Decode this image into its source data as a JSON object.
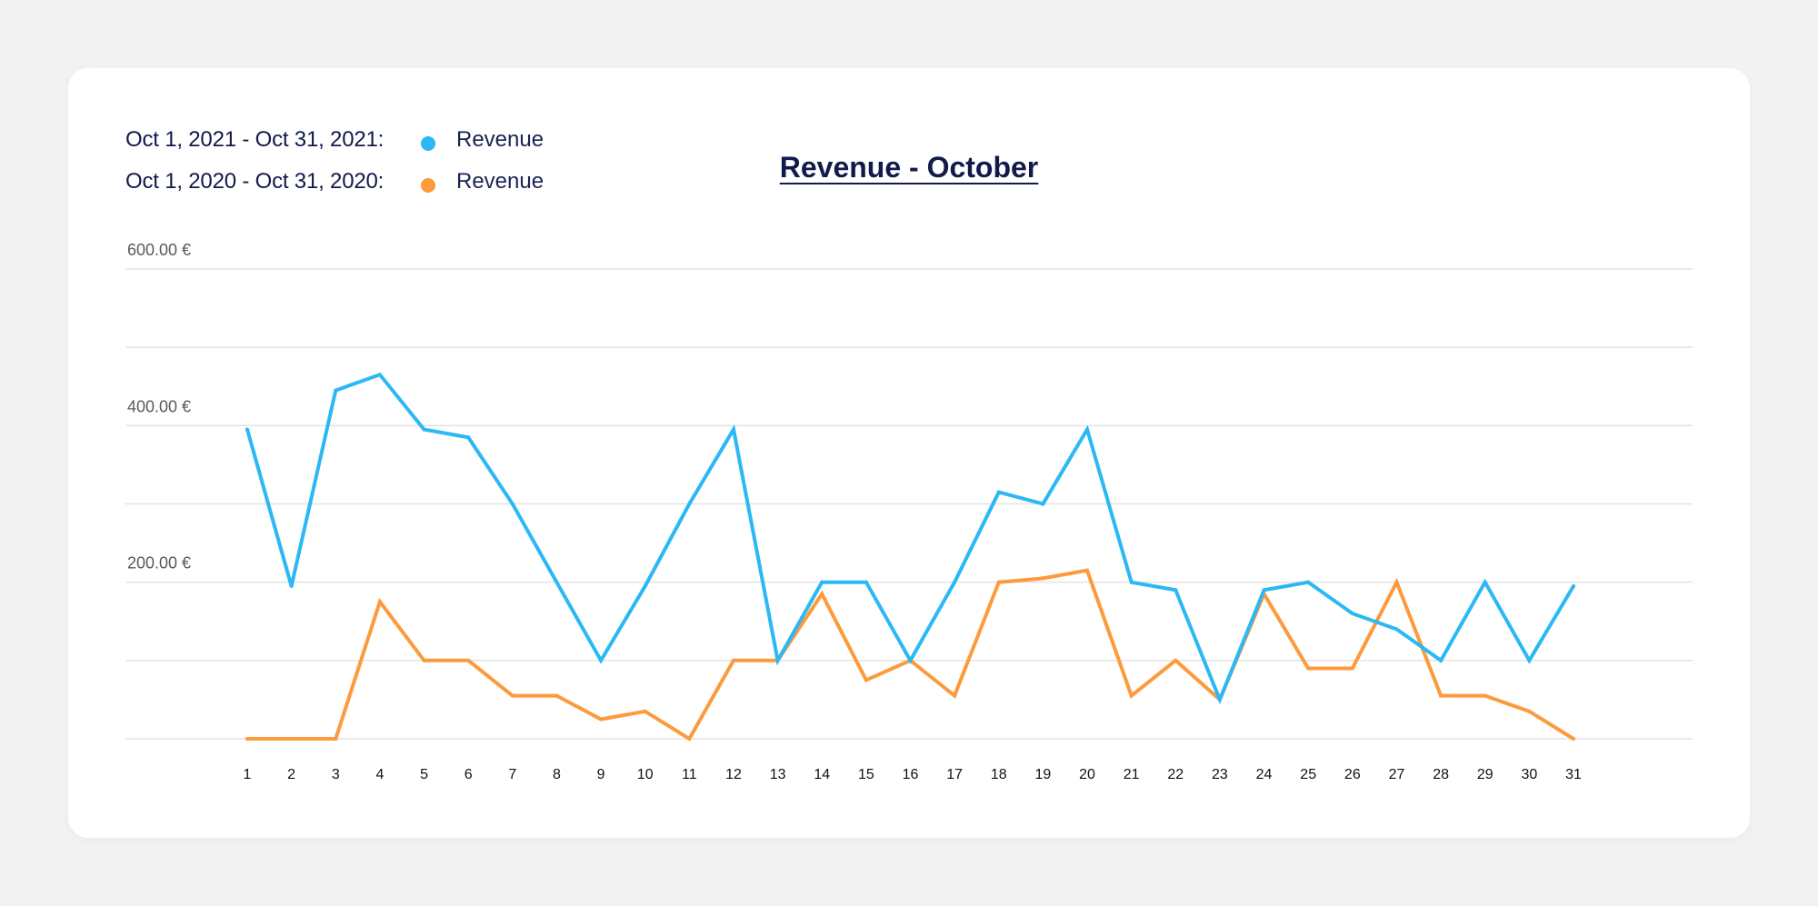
{
  "chart_data": {
    "type": "line",
    "title": "Revenue - October",
    "xlabel": "",
    "ylabel": "",
    "categories": [
      "1",
      "2",
      "3",
      "4",
      "5",
      "6",
      "7",
      "8",
      "9",
      "10",
      "11",
      "12",
      "13",
      "14",
      "15",
      "16",
      "17",
      "18",
      "19",
      "20",
      "21",
      "22",
      "23",
      "24",
      "25",
      "26",
      "27",
      "28",
      "29",
      "30",
      "31"
    ],
    "ylim": [
      0,
      600
    ],
    "y_ticks": [
      {
        "value": 600,
        "label": "600.00 €"
      },
      {
        "value": 500,
        "label": ""
      },
      {
        "value": 400,
        "label": "400.00 €"
      },
      {
        "value": 300,
        "label": ""
      },
      {
        "value": 200,
        "label": "200.00 €"
      },
      {
        "value": 100,
        "label": ""
      },
      {
        "value": 0,
        "label": ""
      }
    ],
    "grid": true,
    "legend_placement": "top-left",
    "series": [
      {
        "name": "Revenue",
        "range_label": "Oct 1, 2021 - Oct 31, 2021:",
        "color": "#2bb8f5",
        "values": [
          395,
          195,
          445,
          465,
          395,
          385,
          300,
          200,
          100,
          195,
          300,
          395,
          100,
          200,
          200,
          100,
          200,
          315,
          300,
          395,
          200,
          190,
          50,
          190,
          200,
          160,
          140,
          100,
          200,
          100,
          195
        ]
      },
      {
        "name": "Revenue",
        "range_label": "Oct 1, 2020 - Oct 31, 2020:",
        "color": "#fd9a3c",
        "values": [
          0,
          0,
          0,
          175,
          100,
          100,
          55,
          55,
          25,
          35,
          0,
          100,
          100,
          185,
          75,
          100,
          55,
          200,
          205,
          215,
          55,
          100,
          50,
          185,
          90,
          90,
          200,
          55,
          55,
          35,
          0
        ]
      }
    ]
  }
}
